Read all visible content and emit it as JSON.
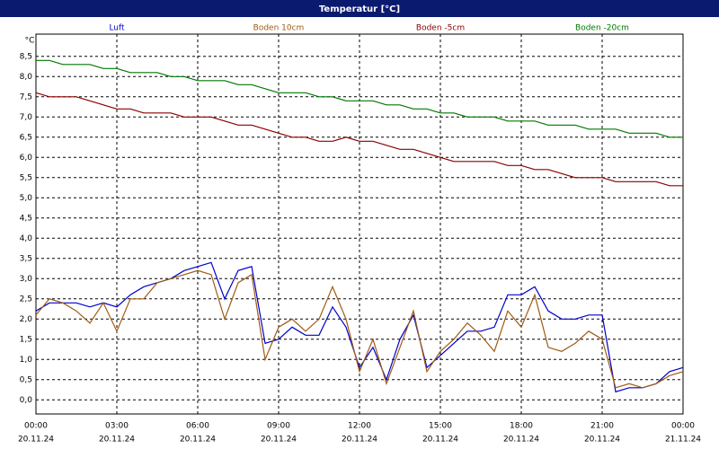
{
  "chart_data": {
    "type": "line",
    "title": "Temperatur [°C]",
    "y_unit": "°C",
    "x": [
      0,
      0.5,
      1,
      1.5,
      2,
      2.5,
      3,
      3.5,
      4,
      4.5,
      5,
      5.5,
      6,
      6.5,
      7,
      7.5,
      8,
      8.5,
      9,
      9.5,
      10,
      10.5,
      11,
      11.5,
      12,
      12.5,
      13,
      13.5,
      14,
      14.5,
      15,
      15.5,
      16,
      16.5,
      17,
      17.5,
      18,
      18.5,
      19,
      19.5,
      20,
      20.5,
      21,
      21.5,
      22,
      22.5,
      23,
      23.5,
      24
    ],
    "series": [
      {
        "name": "Luft",
        "color": "#0000c8",
        "values": [
          2.2,
          2.4,
          2.4,
          2.4,
          2.3,
          2.4,
          2.3,
          2.6,
          2.8,
          2.9,
          3.0,
          3.2,
          3.3,
          3.4,
          2.5,
          3.2,
          3.3,
          1.4,
          1.5,
          1.8,
          1.6,
          1.6,
          2.3,
          1.8,
          0.8,
          1.3,
          0.5,
          1.5,
          2.1,
          0.8,
          1.1,
          1.4,
          1.7,
          1.7,
          1.8,
          2.6,
          2.6,
          2.8,
          2.2,
          2.0,
          2.0,
          2.1,
          2.1,
          0.2,
          0.3,
          0.3,
          0.4,
          0.7,
          0.8
        ]
      },
      {
        "name": "Boden 10cm",
        "color": "#a05a14",
        "values": [
          2.1,
          2.5,
          2.4,
          2.2,
          1.9,
          2.4,
          1.7,
          2.5,
          2.5,
          2.9,
          3.0,
          3.1,
          3.2,
          3.1,
          2.0,
          2.9,
          3.1,
          1.0,
          1.8,
          2.0,
          1.7,
          2.0,
          2.8,
          2.0,
          0.7,
          1.5,
          0.4,
          1.3,
          2.2,
          0.7,
          1.2,
          1.5,
          1.9,
          1.6,
          1.2,
          2.2,
          1.8,
          2.6,
          1.3,
          1.2,
          1.4,
          1.7,
          1.5,
          0.3,
          0.4,
          0.3,
          0.4,
          0.6,
          0.7
        ]
      },
      {
        "name": "Boden -5cm",
        "color": "#8b0000",
        "values": [
          7.6,
          7.5,
          7.5,
          7.5,
          7.4,
          7.3,
          7.2,
          7.2,
          7.1,
          7.1,
          7.1,
          7.0,
          7.0,
          7.0,
          6.9,
          6.8,
          6.8,
          6.7,
          6.6,
          6.5,
          6.5,
          6.4,
          6.4,
          6.5,
          6.4,
          6.4,
          6.3,
          6.2,
          6.2,
          6.1,
          6.0,
          5.9,
          5.9,
          5.9,
          5.9,
          5.8,
          5.8,
          5.7,
          5.7,
          5.6,
          5.5,
          5.5,
          5.5,
          5.4,
          5.4,
          5.4,
          5.4,
          5.3,
          5.3
        ]
      },
      {
        "name": "Boden -20cm",
        "color": "#007800",
        "values": [
          8.4,
          8.4,
          8.3,
          8.3,
          8.3,
          8.2,
          8.2,
          8.1,
          8.1,
          8.1,
          8.0,
          8.0,
          7.9,
          7.9,
          7.9,
          7.8,
          7.8,
          7.7,
          7.6,
          7.6,
          7.6,
          7.5,
          7.5,
          7.4,
          7.4,
          7.4,
          7.3,
          7.3,
          7.2,
          7.2,
          7.1,
          7.1,
          7.0,
          7.0,
          7.0,
          6.9,
          6.9,
          6.9,
          6.8,
          6.8,
          6.8,
          6.7,
          6.7,
          6.7,
          6.6,
          6.6,
          6.6,
          6.5,
          6.5
        ]
      }
    ],
    "xlim": [
      0,
      24
    ],
    "xticks": [
      {
        "value": 0,
        "label": "00:00"
      },
      {
        "value": 3,
        "label": "03:00"
      },
      {
        "value": 6,
        "label": "06:00"
      },
      {
        "value": 9,
        "label": "09:00"
      },
      {
        "value": 12,
        "label": "12:00"
      },
      {
        "value": 15,
        "label": "15:00"
      },
      {
        "value": 18,
        "label": "18:00"
      },
      {
        "value": 21,
        "label": "21:00"
      },
      {
        "value": 24,
        "label": "00:00"
      }
    ],
    "xtick_dates": [
      "20.11.24",
      "20.11.24",
      "20.11.24",
      "20.11.24",
      "20.11.24",
      "20.11.24",
      "20.11.24",
      "20.11.24",
      "21.11.24"
    ],
    "ylim": [
      -0.35,
      9.05
    ],
    "yticks": [
      {
        "value": 0,
        "label": "0,0"
      },
      {
        "value": 0.5,
        "label": "0,5"
      },
      {
        "value": 1,
        "label": "1,0"
      },
      {
        "value": 1.5,
        "label": "1,5"
      },
      {
        "value": 2,
        "label": "2,0"
      },
      {
        "value": 2.5,
        "label": "2,5"
      },
      {
        "value": 3,
        "label": "3,0"
      },
      {
        "value": 3.5,
        "label": "3,5"
      },
      {
        "value": 4,
        "label": "4,0"
      },
      {
        "value": 4.5,
        "label": "4,5"
      },
      {
        "value": 5,
        "label": "5,0"
      },
      {
        "value": 5.5,
        "label": "5,5"
      },
      {
        "value": 6,
        "label": "6,0"
      },
      {
        "value": 6.5,
        "label": "6,5"
      },
      {
        "value": 7,
        "label": "7,0"
      },
      {
        "value": 7.5,
        "label": "7,5"
      },
      {
        "value": 8,
        "label": "8,0"
      },
      {
        "value": 8.5,
        "label": "8,5"
      }
    ],
    "grid": true
  }
}
